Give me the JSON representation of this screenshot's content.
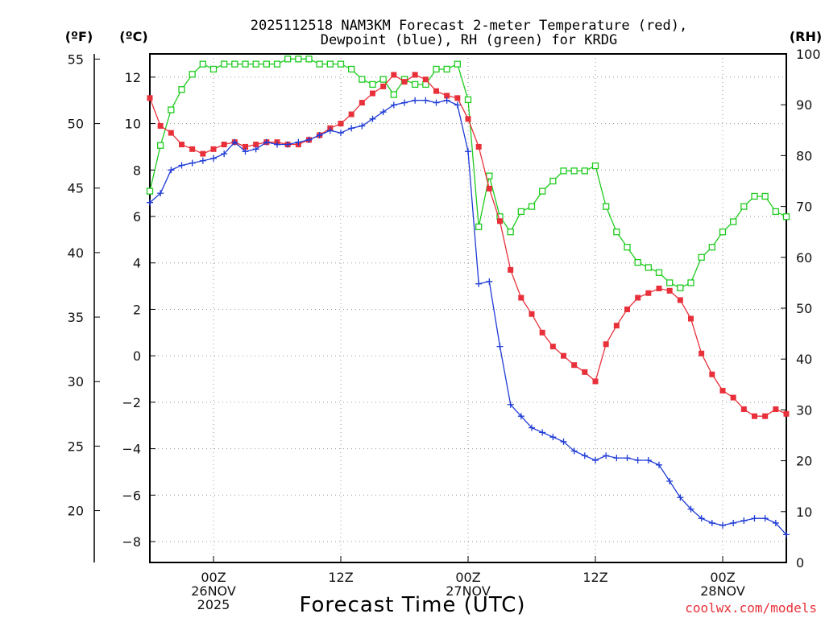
{
  "chart_data": {
    "type": "line",
    "title_line1": "2025112518 NAM3KM Forecast 2-meter Temperature (red),",
    "title_line2": "Dewpoint (blue), RH (green) for KRDG",
    "left_outer_unit": "(ºF)",
    "left_unit": "(ºC)",
    "right_unit": "(RH)",
    "xlabel": "Forecast Time (UTC)",
    "credit": "coolwx.com/models",
    "colors": {
      "temperature": "#e8303a",
      "dewpoint": "#1f3bd6",
      "rh": "#1ecb1e"
    },
    "x_range_hours": [
      0,
      60
    ],
    "celsius_range": [
      -8.9,
      13.0
    ],
    "rh_range": [
      0,
      100
    ],
    "fahrenheit_ticks": [
      "55",
      "50",
      "45",
      "40",
      "35",
      "30",
      "25",
      "20"
    ],
    "celsius_ticks": [
      "12",
      "10",
      "8",
      "6",
      "4",
      "2",
      "0",
      "−2",
      "−4",
      "−6",
      "−8"
    ],
    "rh_ticks": [
      "100",
      "90",
      "80",
      "70",
      "60",
      "50",
      "40",
      "30",
      "20",
      "10",
      "0"
    ],
    "x_ticks": [
      {
        "hour": 6,
        "lines": [
          "00Z",
          "26NOV",
          "2025"
        ]
      },
      {
        "hour": 18,
        "lines": [
          "12Z"
        ]
      },
      {
        "hour": 30,
        "lines": [
          "00Z",
          "27NOV"
        ]
      },
      {
        "hour": 42,
        "lines": [
          "12Z"
        ]
      },
      {
        "hour": 54,
        "lines": [
          "00Z",
          "28NOV"
        ]
      }
    ],
    "series": [
      {
        "name": "Temperature (°C)",
        "marker": "filled-square",
        "axis": "celsius",
        "values": [
          11.1,
          9.9,
          9.6,
          9.1,
          8.9,
          8.7,
          8.9,
          9.1,
          9.2,
          9.0,
          9.1,
          9.2,
          9.2,
          9.1,
          9.1,
          9.3,
          9.5,
          9.8,
          10.0,
          10.4,
          10.9,
          11.3,
          11.6,
          12.1,
          11.8,
          12.1,
          11.9,
          11.4,
          11.2,
          11.1,
          10.2,
          9.0,
          7.2,
          5.8,
          3.7,
          2.5,
          1.8,
          1.0,
          0.4,
          0.0,
          -0.4,
          -0.7,
          -1.1,
          0.5,
          1.3,
          2.0,
          2.5,
          2.7,
          2.9,
          2.8,
          2.4,
          1.6,
          0.1,
          -0.8,
          -1.5,
          -1.8,
          -2.3,
          -2.6,
          -2.6,
          -2.3,
          -2.5
        ]
      },
      {
        "name": "Dewpoint (°C)",
        "marker": "plus",
        "axis": "celsius",
        "values": [
          6.6,
          7.0,
          8.0,
          8.2,
          8.3,
          8.4,
          8.5,
          8.7,
          9.2,
          8.8,
          8.9,
          9.2,
          9.1,
          9.1,
          9.2,
          9.3,
          9.5,
          9.7,
          9.6,
          9.8,
          9.9,
          10.2,
          10.5,
          10.8,
          10.9,
          11.0,
          11.0,
          10.9,
          11.0,
          10.8,
          8.8,
          3.1,
          3.2,
          0.4,
          -2.1,
          -2.6,
          -3.1,
          -3.3,
          -3.5,
          -3.7,
          -4.1,
          -4.3,
          -4.5,
          -4.3,
          -4.4,
          -4.4,
          -4.5,
          -4.5,
          -4.7,
          -5.4,
          -6.1,
          -6.6,
          -7.0,
          -7.2,
          -7.3,
          -7.2,
          -7.1,
          -7.0,
          -7.0,
          -7.2,
          -7.7
        ]
      },
      {
        "name": "Relative Humidity (%)",
        "marker": "open-square",
        "axis": "rh",
        "values": [
          73,
          82,
          89,
          93,
          96,
          98,
          97,
          98,
          98,
          98,
          98,
          98,
          98,
          99,
          99,
          99,
          98,
          98,
          98,
          97,
          95,
          94,
          95,
          92,
          95,
          94,
          94,
          97,
          97,
          98,
          91,
          66,
          76,
          68,
          65,
          69,
          70,
          73,
          75,
          77,
          77,
          77,
          78,
          70,
          65,
          62,
          59,
          58,
          57,
          55,
          54,
          55,
          60,
          62,
          65,
          67,
          70,
          72,
          72,
          69,
          68
        ]
      }
    ]
  }
}
